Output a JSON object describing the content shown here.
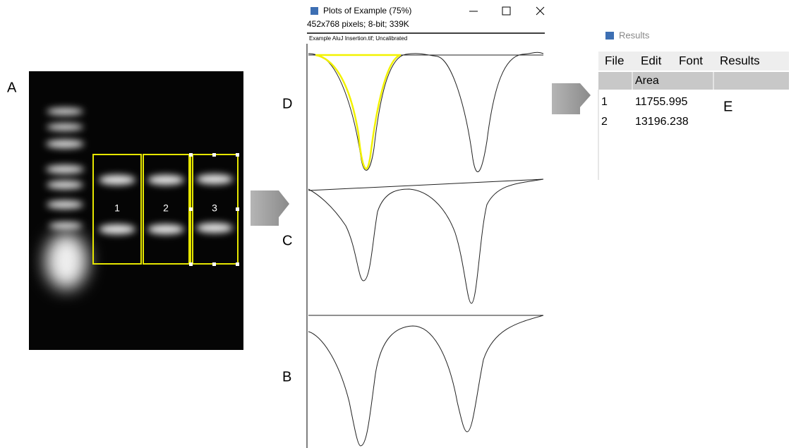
{
  "panels": {
    "a": "A",
    "b": "B",
    "c": "C",
    "d": "D",
    "e": "E"
  },
  "gel": {
    "lanes": [
      "1",
      "2",
      "3"
    ]
  },
  "plots_window": {
    "title": "Plots of Example (75%)",
    "info": "452x768 pixels; 8-bit; 339K",
    "subtitle": "Example AluJ Insertion.tif; Uncalibrated"
  },
  "results_window": {
    "title": "Results",
    "menu": [
      "File",
      "Edit",
      "Font",
      "Results"
    ],
    "table": {
      "header": [
        "",
        "Area"
      ],
      "rows": [
        [
          1,
          11755.995
        ],
        [
          2,
          13196.238
        ]
      ]
    }
  }
}
